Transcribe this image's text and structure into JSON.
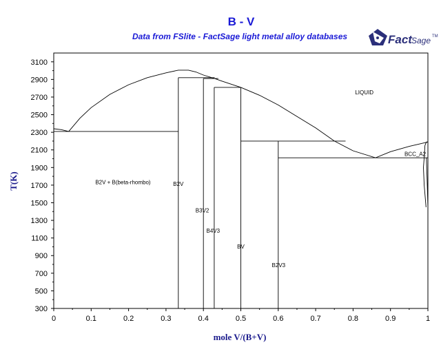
{
  "chart_data": {
    "type": "line",
    "title": "B - V",
    "subtitle": "Data from FSlite - FactSage light metal alloy databases",
    "xlabel": "mole V/(B+V)",
    "ylabel": "T(K)",
    "xlim": [
      0,
      1
    ],
    "ylim": [
      300,
      3200
    ],
    "x_ticks": [
      0,
      0.1,
      0.2,
      0.3,
      0.4,
      0.5,
      0.6,
      0.7,
      0.8,
      0.9,
      1
    ],
    "x_tick_labels": [
      "0",
      "0.1",
      "0.2",
      "0.3",
      "0.4",
      "0.5",
      "0.6",
      "0.7",
      "0.8",
      "0.9",
      "1"
    ],
    "y_ticks": [
      300,
      500,
      700,
      900,
      1100,
      1300,
      1500,
      1700,
      1900,
      2100,
      2300,
      2500,
      2700,
      2900,
      3100
    ],
    "y_tick_labels": [
      "300",
      "500",
      "700",
      "900",
      "1100",
      "1300",
      "1500",
      "1700",
      "1900",
      "2100",
      "2300",
      "2500",
      "2700",
      "2900",
      "3100"
    ],
    "grid": false,
    "lines": [
      {
        "points": [
          [
            0,
            2340
          ],
          [
            0.02,
            2330
          ],
          [
            0.04,
            2310
          ]
        ]
      },
      {
        "points": [
          [
            0,
            2310
          ],
          [
            0.333,
            2310
          ]
        ]
      },
      {
        "points": [
          [
            0.04,
            2310
          ],
          [
            0.07,
            2460
          ],
          [
            0.1,
            2580
          ],
          [
            0.15,
            2730
          ],
          [
            0.2,
            2840
          ],
          [
            0.25,
            2920
          ],
          [
            0.3,
            2975
          ],
          [
            0.333,
            3005
          ],
          [
            0.36,
            3005
          ],
          [
            0.38,
            2985
          ],
          [
            0.4,
            2950
          ],
          [
            0.43,
            2910
          ],
          [
            0.45,
            2880
          ],
          [
            0.5,
            2810
          ],
          [
            0.55,
            2720
          ],
          [
            0.6,
            2610
          ],
          [
            0.65,
            2480
          ],
          [
            0.7,
            2350
          ],
          [
            0.75,
            2200
          ],
          [
            0.8,
            2090
          ],
          [
            0.86,
            2010
          ],
          [
            0.9,
            2080
          ],
          [
            0.95,
            2140
          ],
          [
            0.98,
            2170
          ],
          [
            1,
            2190
          ]
        ]
      },
      {
        "points": [
          [
            0.333,
            300
          ],
          [
            0.333,
            2920
          ]
        ]
      },
      {
        "points": [
          [
            0.333,
            2920
          ],
          [
            0.43,
            2920
          ]
        ]
      },
      {
        "points": [
          [
            0.4,
            300
          ],
          [
            0.4,
            2910
          ]
        ]
      },
      {
        "points": [
          [
            0.4,
            2910
          ],
          [
            0.44,
            2910
          ]
        ]
      },
      {
        "points": [
          [
            0.429,
            300
          ],
          [
            0.429,
            2810
          ]
        ]
      },
      {
        "points": [
          [
            0.429,
            2810
          ],
          [
            0.5,
            2810
          ]
        ]
      },
      {
        "points": [
          [
            0.5,
            300
          ],
          [
            0.5,
            2810
          ]
        ]
      },
      {
        "points": [
          [
            0.5,
            2200
          ],
          [
            0.78,
            2200
          ]
        ]
      },
      {
        "points": [
          [
            0.6,
            300
          ],
          [
            0.6,
            2200
          ]
        ]
      },
      {
        "points": [
          [
            0.6,
            2010
          ],
          [
            1,
            2010
          ]
        ]
      },
      {
        "points": [
          [
            0.99,
            2010
          ],
          [
            0.992,
            2150
          ],
          [
            0.996,
            2190
          ]
        ]
      },
      {
        "points": [
          [
            0.99,
            2010
          ],
          [
            0.988,
            1900
          ],
          [
            0.99,
            1700
          ],
          [
            0.995,
            1450
          ]
        ]
      },
      {
        "points": [
          [
            0.996,
            2190
          ],
          [
            1,
            2190
          ]
        ]
      },
      {
        "points": [
          [
            0.996,
            2010
          ],
          [
            0.998,
            1750
          ],
          [
            1,
            1450
          ]
        ]
      }
    ],
    "annotations": [
      {
        "text": "LIQUID",
        "x": 0.83,
        "y": 2730
      },
      {
        "text": "B2V + B(beta-rhombo)",
        "x": 0.185,
        "y": 1710
      },
      {
        "text": "B2V",
        "x": 0.333,
        "y": 1690
      },
      {
        "text": "B3V2",
        "x": 0.397,
        "y": 1390
      },
      {
        "text": "B4V3",
        "x": 0.426,
        "y": 1160
      },
      {
        "text": "BV",
        "x": 0.5,
        "y": 980
      },
      {
        "text": "B2V3",
        "x": 0.601,
        "y": 770
      },
      {
        "text": "BCC_A2",
        "x": 0.966,
        "y": 2030
      }
    ]
  },
  "logo": {
    "text_main": "Fact",
    "text_sage": "Sage",
    "tm": "TM"
  }
}
